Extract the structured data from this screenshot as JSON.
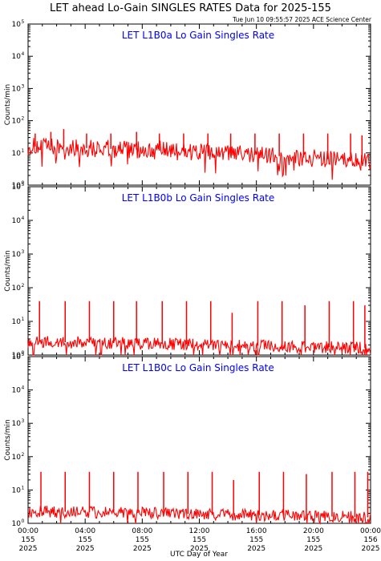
{
  "title": "LET ahead Lo-Gain SINGLES RATES Data for 2025-155",
  "timestamp": "Tue Jun 10 09:55:57 2025 ACE Science Center",
  "colors": {
    "data": "#ff0000",
    "panel_title": "#0000ff",
    "axis": "#000000"
  },
  "chart_data": [
    {
      "type": "line",
      "title": "LET L1B0a Lo Gain Singles Rate",
      "ylabel": "Counts/min",
      "xlabel": "",
      "yscale": "log",
      "ylim": [
        1,
        100000
      ],
      "xlim": [
        0,
        24
      ],
      "baseline": {
        "start": 16,
        "end": 5,
        "spread": 0.28
      },
      "spikes": [
        {
          "x": 0.5,
          "y": 40
        },
        {
          "x": 1.6,
          "y": 45
        },
        {
          "x": 2.5,
          "y": 55
        },
        {
          "x": 4.1,
          "y": 40
        },
        {
          "x": 5.8,
          "y": 40
        },
        {
          "x": 7.6,
          "y": 45
        },
        {
          "x": 9.2,
          "y": 40
        },
        {
          "x": 10.9,
          "y": 40
        },
        {
          "x": 12.6,
          "y": 40
        },
        {
          "x": 14.2,
          "y": 40
        },
        {
          "x": 15.9,
          "y": 40
        },
        {
          "x": 17.6,
          "y": 40
        },
        {
          "x": 19.3,
          "y": 40
        },
        {
          "x": 21.0,
          "y": 40
        },
        {
          "x": 22.6,
          "y": 40
        },
        {
          "x": 23.4,
          "y": 35
        }
      ]
    },
    {
      "type": "line",
      "title": "LET L1B0b Lo Gain Singles Rate",
      "ylabel": "Counts/min",
      "xlabel": "",
      "yscale": "log",
      "ylim": [
        1,
        100000
      ],
      "xlim": [
        0,
        24
      ],
      "baseline": {
        "start": 2.5,
        "end": 1.6,
        "spread": 0.18
      },
      "spikes": [
        {
          "x": 0.8,
          "y": 40
        },
        {
          "x": 2.6,
          "y": 40
        },
        {
          "x": 4.3,
          "y": 40
        },
        {
          "x": 6.0,
          "y": 40
        },
        {
          "x": 7.6,
          "y": 40
        },
        {
          "x": 9.4,
          "y": 40
        },
        {
          "x": 11.1,
          "y": 40
        },
        {
          "x": 12.8,
          "y": 40
        },
        {
          "x": 14.3,
          "y": 18
        },
        {
          "x": 16.1,
          "y": 40
        },
        {
          "x": 17.8,
          "y": 40
        },
        {
          "x": 19.4,
          "y": 30
        },
        {
          "x": 21.1,
          "y": 40
        },
        {
          "x": 22.8,
          "y": 40
        },
        {
          "x": 23.6,
          "y": 30
        }
      ]
    },
    {
      "type": "line",
      "title": "LET L1B0c Lo Gain Singles Rate",
      "ylabel": "Counts/min",
      "xlabel": "UTC Day of Year",
      "yscale": "log",
      "ylim": [
        1,
        100000
      ],
      "xlim": [
        0,
        24
      ],
      "baseline": {
        "start": 2.3,
        "end": 1.5,
        "spread": 0.18
      },
      "spikes": [
        {
          "x": 0.9,
          "y": 35
        },
        {
          "x": 2.6,
          "y": 35
        },
        {
          "x": 4.3,
          "y": 35
        },
        {
          "x": 6.0,
          "y": 35
        },
        {
          "x": 7.7,
          "y": 35
        },
        {
          "x": 9.5,
          "y": 35
        },
        {
          "x": 11.2,
          "y": 35
        },
        {
          "x": 12.9,
          "y": 35
        },
        {
          "x": 14.4,
          "y": 20
        },
        {
          "x": 16.2,
          "y": 35
        },
        {
          "x": 17.9,
          "y": 35
        },
        {
          "x": 19.5,
          "y": 30
        },
        {
          "x": 21.3,
          "y": 35
        },
        {
          "x": 22.9,
          "y": 35
        },
        {
          "x": 23.8,
          "y": 35
        }
      ]
    }
  ],
  "yaxis": {
    "ticks": [
      {
        "value": 1,
        "base": "10",
        "exp": "0"
      },
      {
        "value": 10,
        "base": "10",
        "exp": "1"
      },
      {
        "value": 100,
        "base": "10",
        "exp": "2"
      },
      {
        "value": 1000,
        "base": "10",
        "exp": "3"
      },
      {
        "value": 10000,
        "base": "10",
        "exp": "4"
      },
      {
        "value": 100000,
        "base": "10",
        "exp": "5"
      }
    ]
  },
  "xaxis": {
    "ticks": [
      {
        "value": 0,
        "lines": [
          "00:00",
          "155",
          "2025"
        ]
      },
      {
        "value": 4,
        "lines": [
          "04:00",
          "155",
          "2025"
        ]
      },
      {
        "value": 8,
        "lines": [
          "08:00",
          "155",
          "2025"
        ]
      },
      {
        "value": 12,
        "lines": [
          "12:00",
          "155",
          "2025"
        ]
      },
      {
        "value": 16,
        "lines": [
          "16:00",
          "155",
          "2025"
        ]
      },
      {
        "value": 20,
        "lines": [
          "20:00",
          "155",
          "2025"
        ]
      },
      {
        "value": 24,
        "lines": [
          "00:00",
          "156",
          "2025"
        ]
      }
    ]
  }
}
